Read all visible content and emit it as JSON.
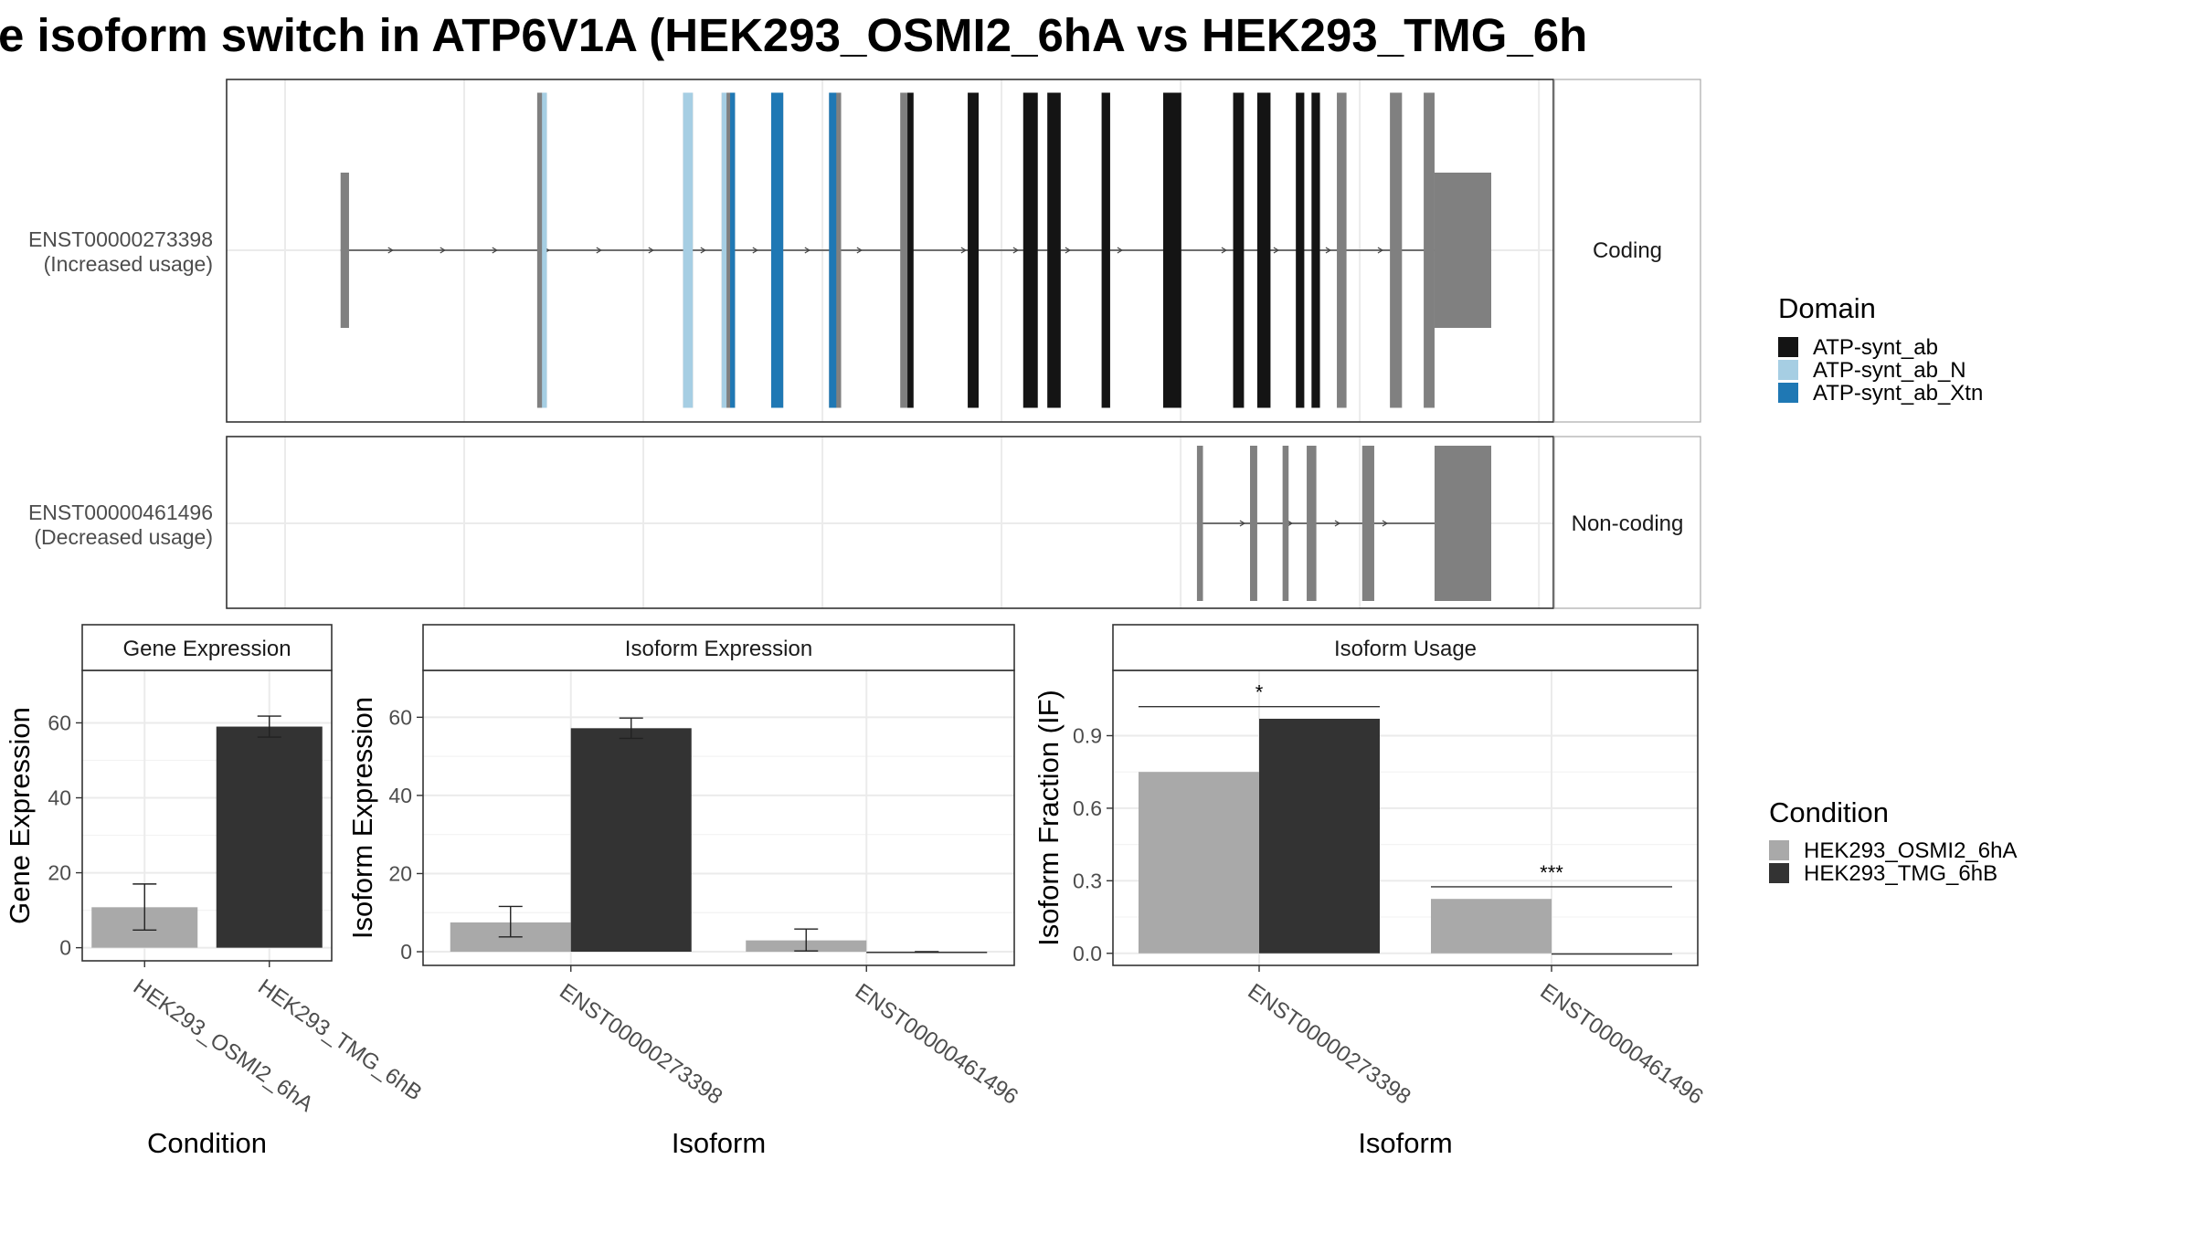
{
  "title": "e isoform switch in ATP6V1A (HEK293_OSMI2_6hA vs HEK293_TMG_6h",
  "colors": {
    "exon": "#808080",
    "cond_a": "#a9a9a9",
    "cond_b": "#333333",
    "domain_ab": "#141414",
    "domain_ab_n": "#a6cee3",
    "domain_ab_xtn": "#1f78b4"
  },
  "transcripts": [
    {
      "label_id": "ENST00000273398",
      "label_usage": "(Increased usage)",
      "facet": "Coding",
      "intron": [
        0.046,
        0.953
      ],
      "exons": [
        {
          "s": 0.046,
          "e": 0.053,
          "coding": false
        },
        {
          "s": 0.209,
          "e": 0.217,
          "coding": true
        },
        {
          "s": 0.33,
          "e": 0.338,
          "coding": true
        },
        {
          "s": 0.362,
          "e": 0.373,
          "coding": true
        },
        {
          "s": 0.403,
          "e": 0.413,
          "coding": true
        },
        {
          "s": 0.451,
          "e": 0.461,
          "coding": true
        },
        {
          "s": 0.51,
          "e": 0.521,
          "coding": true
        },
        {
          "s": 0.566,
          "e": 0.575,
          "coding": true
        },
        {
          "s": 0.612,
          "e": 0.624,
          "coding": true
        },
        {
          "s": 0.632,
          "e": 0.643,
          "coding": true
        },
        {
          "s": 0.677,
          "e": 0.684,
          "coding": true
        },
        {
          "s": 0.728,
          "e": 0.743,
          "coding": true
        },
        {
          "s": 0.872,
          "e": 0.88,
          "coding": true
        },
        {
          "s": 0.916,
          "e": 0.926,
          "coding": true
        },
        {
          "s": 0.944,
          "e": 0.953,
          "coding": true
        },
        {
          "s": 0.953,
          "e": 1.0,
          "coding": false
        }
      ],
      "domains": [
        {
          "name": "ATP-synt_ab_N",
          "s": 0.213,
          "e": 0.217
        },
        {
          "name": "ATP-synt_ab_N",
          "s": 0.33,
          "e": 0.338
        },
        {
          "name": "ATP-synt_ab_N",
          "s": 0.362,
          "e": 0.366
        },
        {
          "name": "ATP-synt_ab_Xtn",
          "s": 0.369,
          "e": 0.373
        },
        {
          "name": "ATP-synt_ab_Xtn",
          "s": 0.403,
          "e": 0.413
        },
        {
          "name": "ATP-synt_ab_Xtn",
          "s": 0.451,
          "e": 0.457
        },
        {
          "name": "ATP-synt_ab",
          "s": 0.516,
          "e": 0.521
        },
        {
          "name": "ATP-synt_ab",
          "s": 0.566,
          "e": 0.575
        },
        {
          "name": "ATP-synt_ab",
          "s": 0.612,
          "e": 0.624
        },
        {
          "name": "ATP-synt_ab",
          "s": 0.632,
          "e": 0.643
        },
        {
          "name": "ATP-synt_ab",
          "s": 0.677,
          "e": 0.684
        },
        {
          "name": "ATP-synt_ab",
          "s": 0.728,
          "e": 0.743
        },
        {
          "name": "ATP-synt_ab",
          "s": 0.786,
          "e": 0.795
        },
        {
          "name": "ATP-synt_ab",
          "s": 0.806,
          "e": 0.817
        },
        {
          "name": "ATP-synt_ab",
          "s": 0.838,
          "e": 0.845
        },
        {
          "name": "ATP-synt_ab",
          "s": 0.851,
          "e": 0.858
        }
      ]
    },
    {
      "label_id": "ENST00000461496",
      "label_usage": "(Decreased usage)",
      "facet": "Non-coding",
      "intron": [
        0.756,
        0.953
      ],
      "exons": [
        {
          "s": 0.756,
          "e": 0.761,
          "coding": false
        },
        {
          "s": 0.8,
          "e": 0.806,
          "coding": false
        },
        {
          "s": 0.827,
          "e": 0.832,
          "coding": false
        },
        {
          "s": 0.847,
          "e": 0.855,
          "coding": false
        },
        {
          "s": 0.893,
          "e": 0.903,
          "coding": false
        },
        {
          "s": 0.953,
          "e": 1.0,
          "coding": false
        }
      ],
      "domains": []
    }
  ],
  "domain_legend": {
    "title": "Domain",
    "items": [
      {
        "name": "ATP-synt_ab",
        "color": "#141414"
      },
      {
        "name": "ATP-synt_ab_N",
        "color": "#a6cee3"
      },
      {
        "name": "ATP-synt_ab_Xtn",
        "color": "#1f78b4"
      }
    ]
  },
  "condition_legend": {
    "title": "Condition",
    "items": [
      {
        "name": "HEK293_OSMI2_6hA",
        "color": "#a9a9a9"
      },
      {
        "name": "HEK293_TMG_6hB",
        "color": "#333333"
      }
    ]
  },
  "chart_data": [
    {
      "type": "bar",
      "title": "Gene Expression",
      "xlabel": "Condition",
      "ylabel": "Gene Expression",
      "categories": [
        "HEK293_OSMI2_6hA",
        "HEK293_TMG_6hB"
      ],
      "ylim": [
        -3.5,
        74
      ],
      "yticks": [
        0,
        20,
        40,
        60
      ],
      "bars": [
        {
          "cat": 0,
          "group": "HEK293_OSMI2_6hA",
          "value": 10.8,
          "err": [
            4.7,
            17.0
          ]
        },
        {
          "cat": 1,
          "group": "HEK293_TMG_6hB",
          "value": 59.0,
          "err": [
            56.2,
            61.8
          ]
        }
      ]
    },
    {
      "type": "bar",
      "title": "Isoform Expression",
      "xlabel": "Isoform",
      "ylabel": "Isoform Expression",
      "categories": [
        "ENST00000273398",
        "ENST00000461496"
      ],
      "ylim": [
        -3.5,
        72
      ],
      "yticks": [
        0,
        20,
        40,
        60
      ],
      "series": [
        {
          "name": "HEK293_OSMI2_6hA",
          "values": [
            7.5,
            2.9
          ],
          "err": [
            [
              3.8,
              11.6
            ],
            [
              0.2,
              5.8
            ]
          ]
        },
        {
          "name": "HEK293_TMG_6hB",
          "values": [
            57.2,
            0.0
          ],
          "err": [
            [
              54.6,
              59.8
            ],
            [
              0.0,
              0.0
            ]
          ]
        }
      ]
    },
    {
      "type": "bar",
      "title": "Isoform Usage",
      "xlabel": "Isoform",
      "ylabel": "Isoform Fraction (IF)",
      "categories": [
        "ENST00000273398",
        "ENST00000461496"
      ],
      "ylim": [
        -0.05,
        1.17
      ],
      "yticks": [
        0.0,
        0.3,
        0.6,
        0.9
      ],
      "ytick_labels": [
        "0.0",
        "0.3",
        "0.6",
        "0.9"
      ],
      "series": [
        {
          "name": "HEK293_OSMI2_6hA",
          "values": [
            0.75,
            0.225
          ]
        },
        {
          "name": "HEK293_TMG_6hB",
          "values": [
            0.97,
            0.0
          ]
        }
      ],
      "significance": [
        {
          "cat": 0,
          "label": "*",
          "y": 1.02
        },
        {
          "cat": 1,
          "label": "***",
          "y": 0.275
        }
      ]
    }
  ]
}
